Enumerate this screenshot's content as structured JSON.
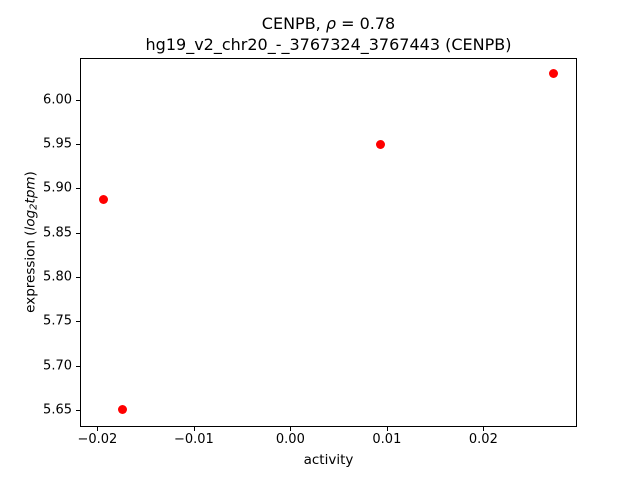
{
  "figure": {
    "title_line1": {
      "prefix": "CENPB, ",
      "rho": "ρ",
      "suffix": " = 0.78"
    },
    "title_line2": "hg19_v2_chr20_-_3767324_3767443 (CENPB)",
    "xlabel": "activity",
    "ylabel": {
      "prefix": "expression (",
      "log": "log",
      "sub": "2",
      "var": "tpm",
      "suffix": ")"
    }
  },
  "chart_data": {
    "type": "scatter",
    "title": "CENPB, ρ = 0.78",
    "subtitle": "hg19_v2_chr20_-_3767324_3767443 (CENPB)",
    "xlabel": "activity",
    "ylabel": "expression (log2 tpm)",
    "marker_color": "#ff0000",
    "grid": false,
    "legend": false,
    "xlim": [
      -0.0218,
      0.0297
    ],
    "ylim": [
      5.631,
      6.047
    ],
    "x_ticks": [
      {
        "value": -0.02,
        "label": "−0.02"
      },
      {
        "value": -0.01,
        "label": "−0.01"
      },
      {
        "value": 0.0,
        "label": "0.00"
      },
      {
        "value": 0.01,
        "label": "0.01"
      },
      {
        "value": 0.02,
        "label": "0.02"
      }
    ],
    "y_ticks": [
      {
        "value": 5.65,
        "label": "5.65"
      },
      {
        "value": 5.7,
        "label": "5.70"
      },
      {
        "value": 5.75,
        "label": "5.75"
      },
      {
        "value": 5.8,
        "label": "5.80"
      },
      {
        "value": 5.85,
        "label": "5.85"
      },
      {
        "value": 5.9,
        "label": "5.90"
      },
      {
        "value": 5.95,
        "label": "5.95"
      },
      {
        "value": 6.0,
        "label": "6.00"
      }
    ],
    "points": [
      {
        "x": -0.0194,
        "y": 5.888
      },
      {
        "x": -0.0174,
        "y": 5.651
      },
      {
        "x": 0.0093,
        "y": 5.949
      },
      {
        "x": 0.0273,
        "y": 6.029
      }
    ]
  }
}
